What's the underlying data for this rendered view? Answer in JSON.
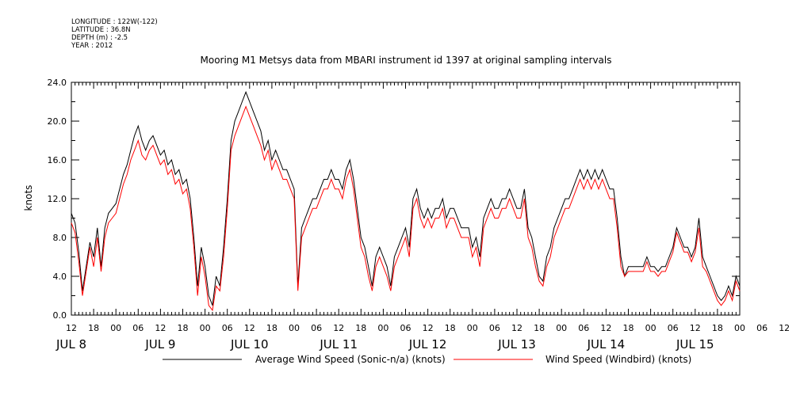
{
  "metadata": {
    "longitude": "LONGITUDE : 122W(-122)",
    "latitude": "LATITUDE : 36.8N",
    "depth": "DEPTH (m) : -2.5",
    "year": "YEAR : 2012"
  },
  "chart_data": {
    "type": "line",
    "title": "Mooring M1 Metsys data from MBARI instrument id 1397 at original sampling intervals",
    "xlabel": "",
    "ylabel": "knots",
    "ylim": [
      0,
      24
    ],
    "yticks": [
      "0.0",
      "4.0",
      "8.0",
      "12.0",
      "16.0",
      "20.0",
      "24.0"
    ],
    "xlim_hours": [
      12,
      192
    ],
    "x_hour_ticks": [
      "12",
      "18",
      "00",
      "06",
      "12",
      "18",
      "00",
      "06",
      "12",
      "18",
      "00",
      "06",
      "12",
      "18",
      "00",
      "06",
      "12",
      "18",
      "00",
      "06",
      "12",
      "18",
      "00",
      "06",
      "12",
      "18",
      "00",
      "06",
      "12",
      "18",
      "00",
      "06",
      "12"
    ],
    "x_date_labels": [
      {
        "text": "JUL  8",
        "hour": 0
      },
      {
        "text": "JUL  9",
        "hour": 24
      },
      {
        "text": "JUL 10",
        "hour": 48
      },
      {
        "text": "JUL 11",
        "hour": 72
      },
      {
        "text": "JUL 12",
        "hour": 96
      },
      {
        "text": "JUL 13",
        "hour": 120
      },
      {
        "text": "JUL 14",
        "hour": 144
      },
      {
        "text": "JUL 15",
        "hour": 168
      }
    ],
    "x_note": "x values are hours after 2012-07-08 00:00",
    "legend_position": "bottom",
    "series": [
      {
        "name": "Average Wind Speed (Sonic-n/a) (knots)",
        "color": "#000000",
        "x": [
          12,
          13,
          14,
          15,
          16,
          17,
          18,
          19,
          20,
          21,
          22,
          23,
          24,
          25,
          26,
          27,
          28,
          29,
          30,
          31,
          32,
          33,
          34,
          35,
          36,
          37,
          38,
          39,
          40,
          41,
          42,
          43,
          44,
          45,
          46,
          47,
          48,
          49,
          50,
          51,
          52,
          53,
          54,
          55,
          56,
          57,
          58,
          59,
          60,
          61,
          62,
          63,
          64,
          65,
          66,
          67,
          68,
          69,
          70,
          71,
          72,
          73,
          74,
          75,
          76,
          77,
          78,
          79,
          80,
          81,
          82,
          83,
          84,
          85,
          86,
          87,
          88,
          89,
          90,
          91,
          92,
          93,
          94,
          95,
          96,
          97,
          98,
          99,
          100,
          101,
          102,
          103,
          104,
          105,
          106,
          107,
          108,
          109,
          110,
          111,
          112,
          113,
          114,
          115,
          116,
          117,
          118,
          119,
          120,
          121,
          122,
          123,
          124,
          125,
          126,
          127,
          128,
          129,
          130,
          131,
          132,
          133,
          134,
          135,
          136,
          137,
          138,
          139,
          140,
          141,
          142,
          143,
          144,
          145,
          146,
          147,
          148,
          149,
          150,
          151,
          152,
          153,
          154,
          155,
          156,
          157,
          158,
          159,
          160,
          161,
          162,
          163,
          164,
          165,
          166,
          167,
          168,
          169,
          170,
          171,
          172,
          173,
          174,
          175,
          176,
          177,
          178,
          179,
          180,
          181,
          182,
          183,
          184,
          185,
          186,
          187,
          188,
          189,
          190,
          191,
          192
        ],
        "y": [
          10.5,
          9.5,
          6.5,
          2.5,
          5,
          7.5,
          6,
          9,
          5,
          9,
          10.5,
          11,
          11.5,
          13,
          14.5,
          15.5,
          17,
          18.5,
          19.5,
          18,
          17,
          18,
          18.5,
          17.5,
          16.5,
          17,
          15.5,
          16,
          14.5,
          15,
          13.5,
          14,
          12,
          8,
          3,
          7,
          5,
          2,
          1,
          4,
          3,
          7,
          12,
          18,
          20,
          21,
          22,
          23,
          22,
          21,
          20,
          19,
          17,
          18,
          16,
          17,
          16,
          15,
          15,
          14,
          13,
          3,
          9,
          10,
          11,
          12,
          12,
          13,
          14,
          14,
          15,
          14,
          14,
          13,
          15,
          16,
          14,
          11,
          8,
          7,
          5,
          3,
          6,
          7,
          6,
          5,
          3,
          6,
          7,
          8,
          9,
          7,
          12,
          13,
          11,
          10,
          11,
          10,
          11,
          11,
          12,
          10,
          11,
          11,
          10,
          9,
          9,
          9,
          7,
          8,
          6,
          10,
          11,
          12,
          11,
          11,
          12,
          12,
          13,
          12,
          11,
          11,
          13,
          9,
          8,
          6,
          4,
          3.5,
          6,
          7,
          9,
          10,
          11,
          12,
          12,
          13,
          14,
          15,
          14,
          15,
          14,
          15,
          14,
          15,
          14,
          13,
          13,
          10,
          6,
          4,
          5,
          5,
          5,
          5,
          5,
          6,
          5,
          5,
          4.5,
          5,
          5,
          6,
          7,
          9,
          8,
          7,
          7,
          6,
          7,
          10,
          6,
          5,
          4,
          3,
          2,
          1.5,
          2,
          3,
          2,
          4,
          3
        ]
      },
      {
        "name": "Wind Speed (Windbird) (knots)",
        "color": "#ff0000",
        "x": [
          12,
          13,
          14,
          15,
          16,
          17,
          18,
          19,
          20,
          21,
          22,
          23,
          24,
          25,
          26,
          27,
          28,
          29,
          30,
          31,
          32,
          33,
          34,
          35,
          36,
          37,
          38,
          39,
          40,
          41,
          42,
          43,
          44,
          45,
          46,
          47,
          48,
          49,
          50,
          51,
          52,
          53,
          54,
          55,
          56,
          57,
          58,
          59,
          60,
          61,
          62,
          63,
          64,
          65,
          66,
          67,
          68,
          69,
          70,
          71,
          72,
          73,
          74,
          75,
          76,
          77,
          78,
          79,
          80,
          81,
          82,
          83,
          84,
          85,
          86,
          87,
          88,
          89,
          90,
          91,
          92,
          93,
          94,
          95,
          96,
          97,
          98,
          99,
          100,
          101,
          102,
          103,
          104,
          105,
          106,
          107,
          108,
          109,
          110,
          111,
          112,
          113,
          114,
          115,
          116,
          117,
          118,
          119,
          120,
          121,
          122,
          123,
          124,
          125,
          126,
          127,
          128,
          129,
          130,
          131,
          132,
          133,
          134,
          135,
          136,
          137,
          138,
          139,
          140,
          141,
          142,
          143,
          144,
          145,
          146,
          147,
          148,
          149,
          150,
          151,
          152,
          153,
          154,
          155,
          156,
          157,
          158,
          159,
          160,
          161,
          162,
          163,
          164,
          165,
          166,
          167,
          168,
          169,
          170,
          171,
          172,
          173,
          174,
          175,
          176,
          177,
          178,
          179,
          180,
          181,
          182,
          183,
          184,
          185,
          186,
          187,
          188,
          189,
          190,
          191,
          192
        ],
        "y": [
          9.5,
          8.5,
          5.5,
          2,
          4.5,
          7,
          5,
          8,
          4.5,
          8,
          9.5,
          10,
          10.5,
          12,
          13.5,
          14.5,
          16,
          17,
          18,
          16.5,
          16,
          17,
          17.5,
          16.5,
          15.5,
          16,
          14.5,
          15,
          13.5,
          14,
          12.5,
          13,
          11,
          7,
          2,
          6,
          4,
          1,
          0.5,
          3,
          2.5,
          6,
          11,
          17,
          18.5,
          19.5,
          20.5,
          21.5,
          20.5,
          19.5,
          18.5,
          17.5,
          16,
          17,
          15,
          16,
          15,
          14,
          14,
          13,
          12,
          2.5,
          8,
          9,
          10,
          11,
          11,
          12,
          13,
          13,
          14,
          13,
          13,
          12,
          14,
          15,
          13,
          10,
          7,
          6,
          4,
          2.5,
          5,
          6,
          5,
          4,
          2.5,
          5,
          6,
          7,
          8,
          6,
          11,
          12,
          10,
          9,
          10,
          9,
          10,
          10,
          11,
          9,
          10,
          10,
          9,
          8,
          8,
          8,
          6,
          7,
          5,
          9,
          10,
          11,
          10,
          10,
          11,
          11,
          12,
          11,
          10,
          10,
          12,
          8,
          7,
          5,
          3.5,
          3,
          5,
          6,
          8,
          9,
          10,
          11,
          11,
          12,
          13,
          14,
          13,
          14,
          13,
          14,
          13,
          14,
          13,
          12,
          12,
          9,
          5,
          4,
          4.5,
          4.5,
          4.5,
          4.5,
          4.5,
          5.5,
          4.5,
          4.5,
          4,
          4.5,
          4.5,
          5.5,
          6.5,
          8.5,
          7.5,
          6.5,
          6.5,
          5.5,
          6.5,
          9,
          5,
          4.5,
          3.5,
          2.5,
          1.5,
          1,
          1.5,
          2.5,
          1.5,
          3.5,
          2.5
        ]
      }
    ]
  }
}
